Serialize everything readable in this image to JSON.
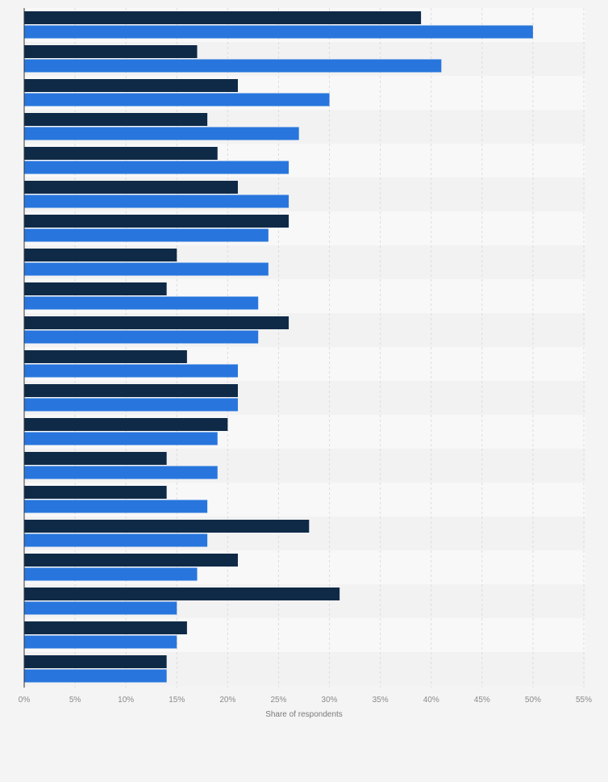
{
  "chart_data": {
    "type": "bar",
    "orientation": "horizontal",
    "title": "",
    "xlabel": "Share of respondents",
    "ylabel": "",
    "xlim": [
      0,
      55
    ],
    "x_tick_values": [
      0,
      5,
      10,
      15,
      20,
      25,
      30,
      35,
      40,
      45,
      50,
      55
    ],
    "x_tick_labels": [
      "0%",
      "5%",
      "10%",
      "15%",
      "20%",
      "25%",
      "30%",
      "35%",
      "40%",
      "45%",
      "50%",
      "55%"
    ],
    "grid": true,
    "legend": "none",
    "categories": [
      "",
      "",
      "",
      "",
      "",
      "",
      "",
      "",
      "",
      "",
      "",
      "",
      "",
      "",
      "",
      "",
      "",
      "",
      "",
      ""
    ],
    "series": [
      {
        "color": "#0f2a47",
        "values": [
          39,
          17,
          21,
          18,
          19,
          21,
          26,
          15,
          14,
          26,
          16,
          21,
          20,
          14,
          14,
          28,
          21,
          31,
          16,
          14
        ]
      },
      {
        "color": "#2876dd",
        "values": [
          50,
          41,
          30,
          27,
          26,
          26,
          24,
          24,
          23,
          23,
          21,
          21,
          19,
          19,
          18,
          18,
          17,
          15,
          15,
          14
        ]
      }
    ]
  },
  "colors": {
    "background": "#f4f4f5",
    "band_light": "#f8f8f9",
    "band_dark": "#f2f2f3",
    "gridline": "#dcdcde",
    "axis_line": "#333333"
  }
}
